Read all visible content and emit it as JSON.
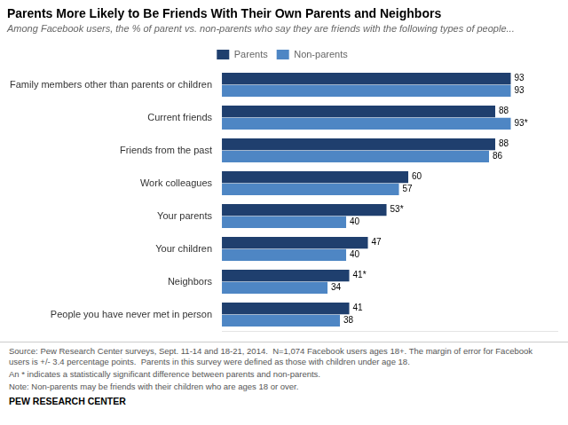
{
  "chart_data": {
    "type": "bar",
    "orientation": "horizontal",
    "title": "Parents More Likely to Be Friends With Their Own Parents and Neighbors",
    "subtitle": "Among Facebook users, the % of parent vs. non-parents who say they are friends with the following types of people...",
    "categories": [
      "Family members other than parents or children",
      "Current friends",
      "Friends from the past",
      "Work colleagues",
      "Your parents",
      "Your children",
      "Neighbors",
      "People you have never met in person"
    ],
    "series": [
      {
        "name": "Parents",
        "color": "#1F3F6E",
        "values": [
          93,
          88,
          88,
          60,
          53,
          47,
          41,
          41
        ],
        "value_labels": [
          "93",
          "88",
          "88",
          "60",
          "53*",
          "47",
          "41*",
          "41"
        ]
      },
      {
        "name": "Non-parents",
        "color": "#4E86C4",
        "values": [
          93,
          93,
          86,
          57,
          40,
          40,
          34,
          38
        ],
        "value_labels": [
          "93",
          "93*",
          "86",
          "57",
          "40",
          "40",
          "34",
          "38"
        ]
      }
    ],
    "xlim": [
      0,
      108
    ],
    "tick_labels": "y",
    "grid": false,
    "legend": "top",
    "data_labels": true,
    "annotations": [
      "Source: Pew Research Center surveys, Sept. 11-14 and 18-21, 2014.  N=1,074 Facebook users ages 18+. The margin of error for Facebook\nusers is +/- 3.4 percentage points.  Parents in this survey were defined as those with children under age 18.",
      "An * indicates a statistically significant difference between parents and non-parents.",
      "Note: Non-parents may be friends with their children who are ages 18 or over.",
      "PEW RESEARCH CENTER"
    ]
  }
}
